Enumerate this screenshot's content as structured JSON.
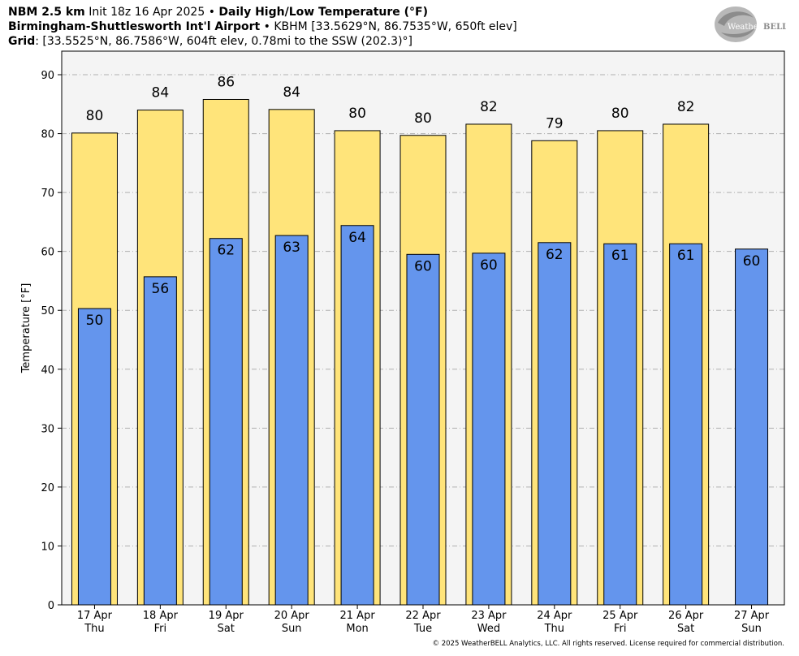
{
  "header": {
    "line1": {
      "model": "NBM 2.5 km",
      "init": "Init 18z 16 Apr 2025",
      "sep": "•",
      "product": "Daily High/Low Temperature (°F)"
    },
    "line2": {
      "station": "Birmingham-Shuttlesworth Int'l Airport",
      "sep": "•",
      "station_info": "KBHM [33.5629°N, 86.7535°W, 650ft elev]"
    },
    "line3": {
      "label": "Grid",
      "grid_info": ": [33.5525°N, 86.7586°W, 604ft elev, 0.78mi to the SSW (202.3)°]"
    }
  },
  "logo": {
    "text_a": "Weather",
    "text_b": "BELL",
    "icon": "weatherbell-swirl-logo"
  },
  "copyright": "© 2025 WeatherBELL Analytics, LLC. All rights reserved. License required for commercial distribution.",
  "colors": {
    "high": "#ffe47a",
    "low": "#6495ed",
    "plot_bg": "#f4f4f4",
    "grid": "#b0b0b0"
  },
  "chart_data": {
    "type": "bar",
    "ylabel": "Temperature [°F]",
    "ylim": [
      0,
      94
    ],
    "yticks": [
      0,
      10,
      20,
      30,
      40,
      50,
      60,
      70,
      80,
      90
    ],
    "grid": "horizontal dashed",
    "categories": [
      [
        "17 Apr",
        "Thu"
      ],
      [
        "18 Apr",
        "Fri"
      ],
      [
        "19 Apr",
        "Sat"
      ],
      [
        "20 Apr",
        "Sun"
      ],
      [
        "21 Apr",
        "Mon"
      ],
      [
        "22 Apr",
        "Tue"
      ],
      [
        "23 Apr",
        "Wed"
      ],
      [
        "24 Apr",
        "Thu"
      ],
      [
        "25 Apr",
        "Fri"
      ],
      [
        "26 Apr",
        "Sat"
      ],
      [
        "27 Apr",
        "Sun"
      ]
    ],
    "series": [
      {
        "key": "high",
        "values": [
          80.1,
          84.0,
          85.8,
          84.1,
          80.5,
          79.7,
          81.6,
          78.8,
          80.5,
          81.6,
          null
        ],
        "labels": [
          "80",
          "84",
          "86",
          "84",
          "80",
          "80",
          "82",
          "79",
          "80",
          "82",
          ""
        ]
      },
      {
        "key": "low",
        "values": [
          50.3,
          55.7,
          62.2,
          62.7,
          64.4,
          59.5,
          59.7,
          61.5,
          61.3,
          61.3,
          60.4
        ],
        "labels": [
          "50",
          "56",
          "62",
          "63",
          "64",
          "60",
          "60",
          "62",
          "61",
          "61",
          "60"
        ]
      }
    ]
  }
}
